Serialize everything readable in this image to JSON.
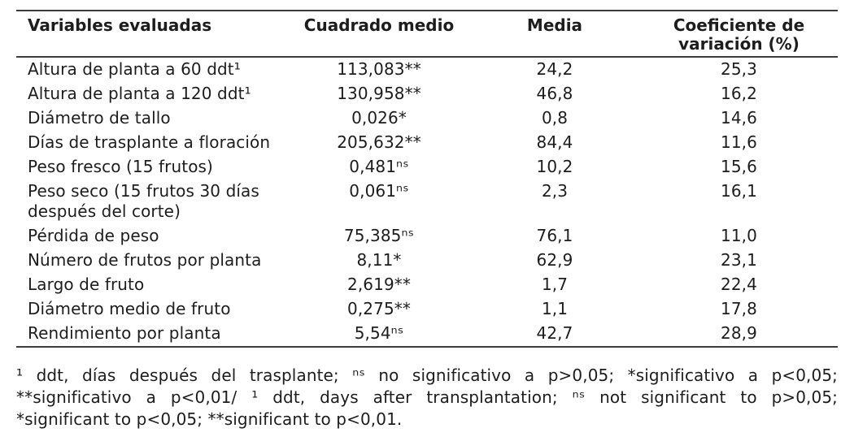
{
  "page": {
    "background": "#ffffff",
    "text_color": "#1d1d1d",
    "rule_color": "#3d3d3d"
  },
  "table": {
    "columns": [
      "Variables evaluadas",
      "Cuadrado medio",
      "Media",
      "Coeficiente de variación (%)"
    ],
    "rows": [
      {
        "variable": "Altura de planta a 60 ddt¹",
        "cuadrado_medio": "113,083**",
        "media": "24,2",
        "cv": "25,3"
      },
      {
        "variable": "Altura de planta a 120 ddt¹",
        "cuadrado_medio": "130,958**",
        "media": "46,8",
        "cv": "16,2"
      },
      {
        "variable": "Diámetro de tallo",
        "cuadrado_medio": "0,026*",
        "media": "0,8",
        "cv": "14,6"
      },
      {
        "variable": "Días de trasplante a floración",
        "cuadrado_medio": "205,632**",
        "media": "84,4",
        "cv": "11,6"
      },
      {
        "variable": "Peso fresco (15 frutos)",
        "cuadrado_medio": "0,481ⁿˢ",
        "media": "10,2",
        "cv": "15,6"
      },
      {
        "variable": "Peso seco (15 frutos 30 días después del corte)",
        "cuadrado_medio": "0,061ⁿˢ",
        "media": "2,3",
        "cv": "16,1"
      },
      {
        "variable": "Pérdida de peso",
        "cuadrado_medio": "75,385ⁿˢ",
        "media": "76,1",
        "cv": "11,0"
      },
      {
        "variable": "Número de frutos por planta",
        "cuadrado_medio": "8,11*",
        "media": "62,9",
        "cv": "23,1"
      },
      {
        "variable": "Largo de fruto",
        "cuadrado_medio": "2,619**",
        "media": "1,7",
        "cv": "22,4"
      },
      {
        "variable": "Diámetro medio de fruto",
        "cuadrado_medio": "0,275**",
        "media": "1,1",
        "cv": "17,8"
      },
      {
        "variable": "Rendimiento por planta",
        "cuadrado_medio": "5,54ⁿˢ",
        "media": "42,7",
        "cv": "28,9"
      }
    ]
  },
  "footnote": {
    "lines": [
      "¹ ddt, días después del trasplante; ⁿˢ no significativo a p>0,05; *significativo a p<0,05;",
      "**significativo a p<0,01/ ¹ ddt, days after transplantation; ⁿˢ not significant to p>0,05;",
      "*significant to p<0,05; **significant to p<0,01."
    ]
  }
}
